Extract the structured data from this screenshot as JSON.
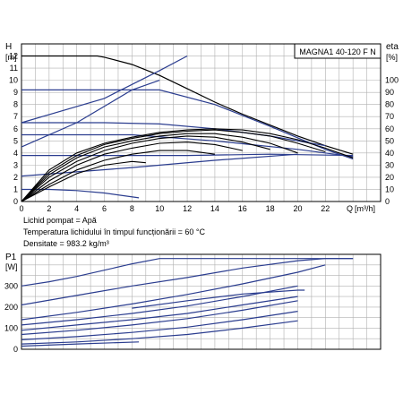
{
  "chart_data": [
    {
      "type": "line",
      "title": "MAGNA1 40-120 F N",
      "ylabel": "H",
      "yunit": "[m]",
      "y2label": "eta",
      "y2unit": "[%]",
      "xlabel": "Q",
      "xunit": "[m³/h]",
      "xlim": [
        0,
        26
      ],
      "ylim": [
        0,
        13
      ],
      "y2lim": [
        0,
        130
      ],
      "xticks": [
        "0",
        "2",
        "4",
        "6",
        "8",
        "10",
        "12",
        "14",
        "16",
        "18",
        "20",
        "22"
      ],
      "yticks": [
        "0",
        "1",
        "2",
        "3",
        "4",
        "5",
        "6",
        "7",
        "8",
        "9",
        "10",
        "11",
        "12"
      ],
      "y2ticks": [
        "0",
        "10",
        "20",
        "30",
        "40",
        "50",
        "60",
        "70",
        "80",
        "90",
        "100"
      ],
      "grid": true,
      "series": [
        {
          "curve": "head-max",
          "x": [
            0,
            5.5,
            6,
            8,
            10,
            12,
            14,
            16,
            18,
            20,
            22,
            24
          ],
          "y": [
            12,
            12,
            11.9,
            11.3,
            10.4,
            9.3,
            8.2,
            7.2,
            6.3,
            5.4,
            4.6,
            3.9
          ]
        },
        {
          "curve": "head-p2",
          "x": [
            0,
            10,
            14,
            18,
            22,
            24
          ],
          "y": [
            9.2,
            9.2,
            8.0,
            6.2,
            4.3,
            3.5
          ]
        },
        {
          "curve": "head-p3",
          "x": [
            0,
            6,
            10,
            14,
            18,
            22
          ],
          "y": [
            6.5,
            6.5,
            6.4,
            6.0,
            5.4,
            4.6
          ]
        },
        {
          "curve": "head-p4",
          "x": [
            0,
            8,
            14,
            20,
            24
          ],
          "y": [
            5.5,
            5.5,
            5.0,
            4.3,
            3.7
          ]
        },
        {
          "curve": "head-p5",
          "x": [
            0,
            12,
            18,
            24
          ],
          "y": [
            3.8,
            3.8,
            3.9,
            3.8
          ]
        },
        {
          "curve": "head-p6",
          "x": [
            0,
            8,
            14,
            20
          ],
          "y": [
            2.1,
            2.8,
            3.4,
            3.9
          ]
        },
        {
          "curve": "head-min",
          "x": [
            0,
            2,
            4,
            6,
            8.5
          ],
          "y": [
            1.0,
            1.0,
            0.9,
            0.7,
            0.3
          ]
        },
        {
          "curve": "eff-1",
          "x": [
            0,
            2,
            4,
            6,
            8,
            10,
            12,
            14,
            16,
            18,
            20,
            22,
            24
          ],
          "y": [
            0,
            2.6,
            4.0,
            4.8,
            5.3,
            5.7,
            5.9,
            6.0,
            5.9,
            5.6,
            5.1,
            4.4,
            3.6
          ]
        },
        {
          "curve": "eff-2",
          "x": [
            0,
            2,
            4,
            6,
            8,
            10,
            12,
            14,
            16,
            18,
            20,
            22
          ],
          "y": [
            0,
            2.4,
            3.8,
            4.7,
            5.2,
            5.6,
            5.8,
            5.9,
            5.7,
            5.4,
            4.8,
            4.1
          ]
        },
        {
          "curve": "eff-3",
          "x": [
            0,
            2,
            4,
            6,
            8,
            10,
            12,
            14,
            16,
            18,
            20
          ],
          "y": [
            0,
            2.2,
            3.6,
            4.5,
            5.0,
            5.4,
            5.6,
            5.6,
            5.3,
            4.8,
            4.0
          ]
        },
        {
          "curve": "eff-4",
          "x": [
            0,
            2,
            4,
            6,
            8,
            10,
            12,
            14,
            16,
            18
          ],
          "y": [
            0,
            2.0,
            3.3,
            4.2,
            4.8,
            5.2,
            5.4,
            5.3,
            4.9,
            4.3
          ]
        },
        {
          "curve": "eff-5",
          "x": [
            0,
            2,
            4,
            6,
            8,
            10,
            12,
            14,
            16
          ],
          "y": [
            0,
            1.7,
            3.0,
            3.9,
            4.4,
            4.8,
            4.9,
            4.7,
            4.2
          ]
        },
        {
          "curve": "eff-6",
          "x": [
            0,
            2,
            4,
            6,
            8,
            10,
            12,
            14
          ],
          "y": [
            0,
            1.4,
            2.6,
            3.4,
            3.9,
            4.2,
            4.2,
            3.9
          ]
        },
        {
          "curve": "eff-7",
          "x": [
            0,
            2,
            4,
            6,
            8,
            9
          ],
          "y": [
            0,
            1.2,
            2.3,
            3.0,
            3.3,
            3.2
          ]
        },
        {
          "curve": "sys-1",
          "x": [
            0,
            4,
            8,
            10
          ],
          "y": [
            4.5,
            6.5,
            9.2,
            10.0
          ]
        },
        {
          "curve": "sys-2",
          "x": [
            0,
            6,
            10,
            12
          ],
          "y": [
            6.5,
            8.5,
            10.8,
            12.0
          ]
        }
      ]
    },
    {
      "type": "line",
      "ylabel": "P1",
      "yunit": "[W]",
      "xlim": [
        0,
        26
      ],
      "ylim": [
        0,
        450
      ],
      "yticks": [
        "0",
        "100",
        "200",
        "300"
      ],
      "grid": true,
      "series": [
        {
          "curve": "power-max",
          "x": [
            0,
            2,
            4,
            6,
            8,
            10,
            12,
            14,
            16,
            18,
            20,
            22,
            24
          ],
          "y": [
            300,
            320,
            345,
            375,
            405,
            430,
            430,
            430,
            430,
            430,
            430,
            430,
            430
          ]
        },
        {
          "curve": "power-2",
          "x": [
            0,
            4,
            8,
            12,
            16,
            20,
            22,
            24
          ],
          "y": [
            210,
            255,
            300,
            340,
            385,
            420,
            430,
            430
          ]
        },
        {
          "curve": "power-3",
          "x": [
            0,
            4,
            8,
            12,
            16,
            20,
            22
          ],
          "y": [
            140,
            175,
            215,
            260,
            310,
            365,
            400
          ]
        },
        {
          "curve": "power-4",
          "x": [
            0,
            4,
            8,
            12,
            16,
            20
          ],
          "y": [
            115,
            140,
            170,
            205,
            250,
            300
          ]
        },
        {
          "curve": "power-5",
          "x": [
            0,
            4,
            8,
            12,
            16,
            20
          ],
          "y": [
            90,
            115,
            140,
            170,
            210,
            250
          ]
        },
        {
          "curve": "power-6",
          "x": [
            0,
            4,
            8,
            12,
            16,
            20
          ],
          "y": [
            70,
            90,
            115,
            145,
            185,
            230
          ]
        },
        {
          "curve": "power-7",
          "x": [
            0,
            4,
            8,
            12,
            16,
            20
          ],
          "y": [
            45,
            60,
            80,
            105,
            140,
            180
          ]
        },
        {
          "curve": "power-8",
          "x": [
            0,
            4,
            8,
            12,
            16,
            20
          ],
          "y": [
            25,
            35,
            50,
            70,
            100,
            135
          ]
        },
        {
          "curve": "power-const-280",
          "x": [
            8,
            12,
            16,
            20,
            20.5
          ],
          "y": [
            195,
            230,
            262,
            280,
            280
          ]
        },
        {
          "curve": "power-min",
          "x": [
            0,
            4,
            8.5
          ],
          "y": [
            15,
            25,
            35
          ]
        }
      ]
    }
  ],
  "notes": {
    "liquid": "Lichid pompat = Apă",
    "temperature": "Temperatura lichidului în timpul funcționării = 60 °C",
    "density": "Densitate = 983.2 kg/m³"
  },
  "colors": {
    "curve": "#2b3d8f",
    "black": "#000000",
    "grid": "#b0b0b0",
    "axis": "#000000"
  }
}
